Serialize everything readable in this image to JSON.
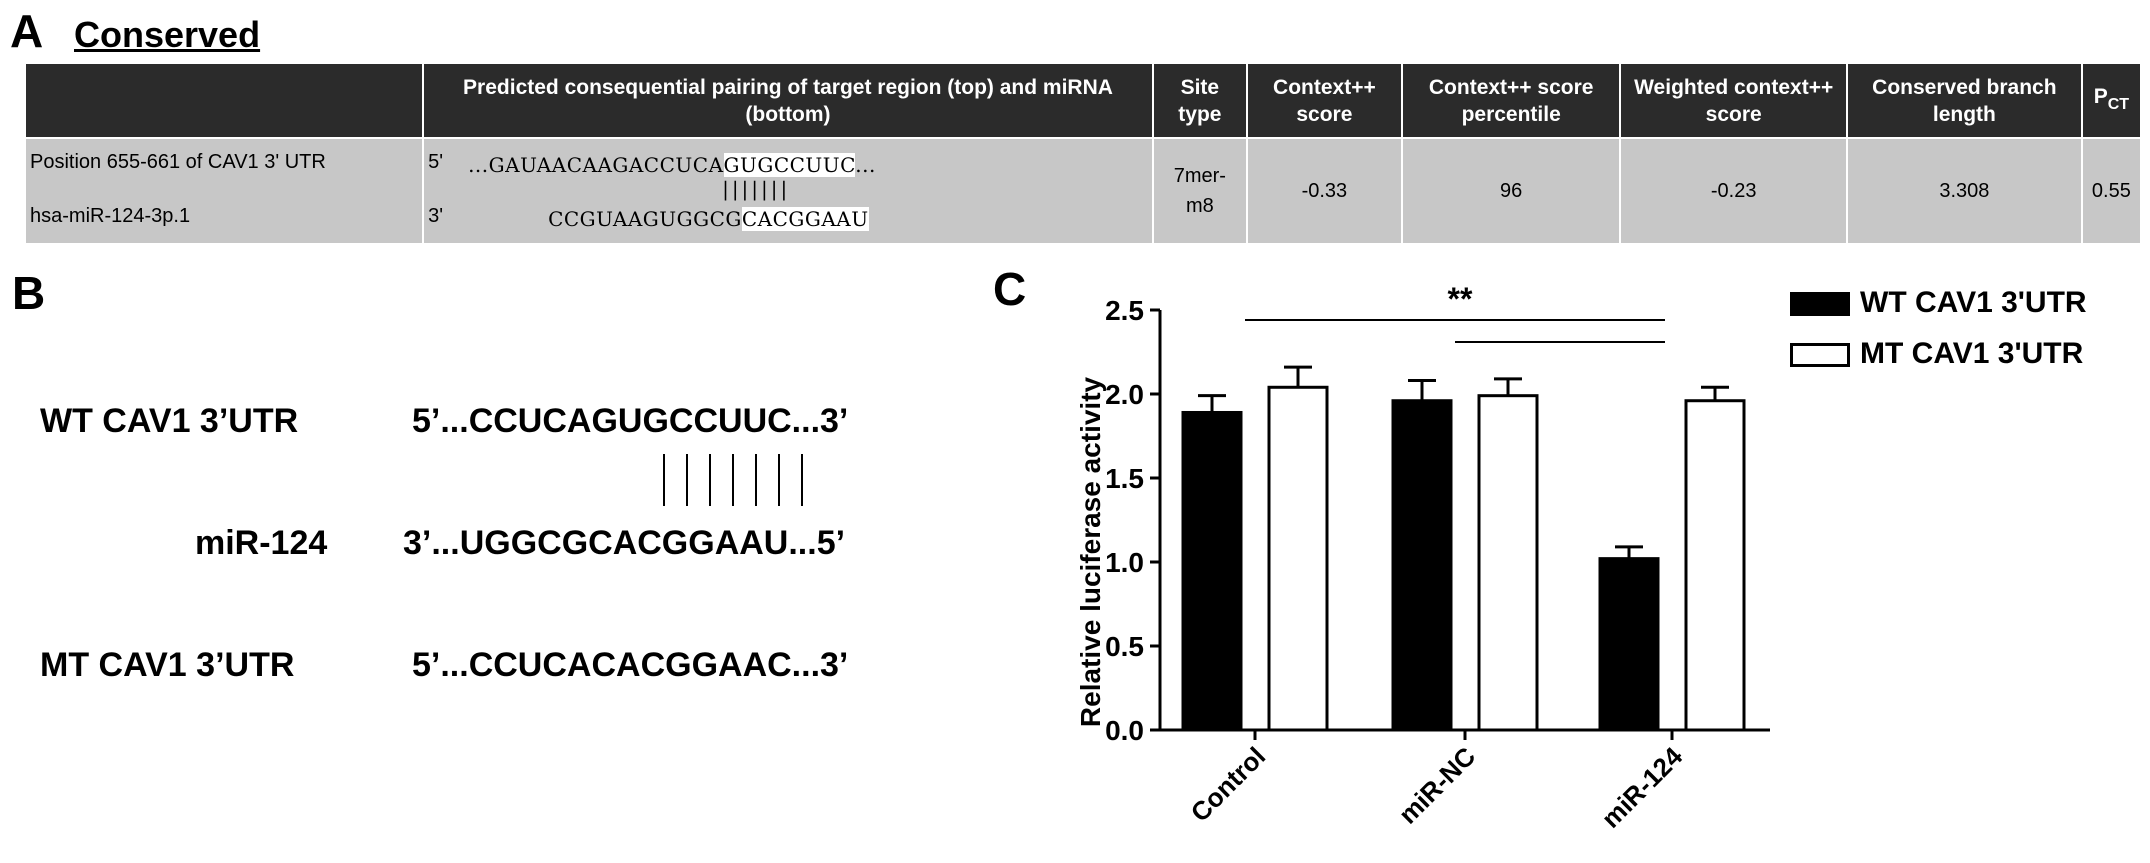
{
  "panel_a": {
    "letter": "A",
    "title": "Conserved",
    "headers": {
      "pairing": "Predicted consequential pairing of target region (top) and miRNA (bottom)",
      "site_type": "Site type",
      "context_score": "Context++ score",
      "context_percentile": "Context++ score percentile",
      "weighted_context": "Weighted context++ score",
      "branch_length": "Conserved branch length",
      "pct_main": "P",
      "pct_sub": "CT"
    },
    "row": {
      "position": "Position 655-661 of CAV1 3' UTR",
      "mirna": "hsa-miR-124-3p.1",
      "five_prime": "5'",
      "three_prime": "3'",
      "target_prefix": "...GAUAACAAGACCUCA",
      "target_site": "GUGCCUUC",
      "target_suffix": "...",
      "pair_bars": "|||||||",
      "mirna_prefix": "CCGUAAGUGGCG",
      "mirna_site": "CACGGAAU",
      "site_type": "7mer-m8",
      "context_score": "-0.33",
      "context_percentile": "96",
      "weighted_context": "-0.23",
      "branch_length": "3.308",
      "pct": "0.55"
    }
  },
  "panel_b": {
    "letter": "B",
    "wt_label": "WT CAV1 3’UTR",
    "wt_seq": "5’...CCUCAGUGCCUUC...3’",
    "mir_label": "miR-124",
    "mir_seq": "3’...UGGCGCACGGAAU...5’",
    "mt_label": "MT CAV1 3’UTR",
    "mt_seq": "5’...CCUCACACGGAAC...3’"
  },
  "panel_c": {
    "letter": "C",
    "significance": "**"
  },
  "chart_data": {
    "type": "bar",
    "title": "",
    "xlabel": "",
    "ylabel": "Relative luciferase activity",
    "ylim": [
      0,
      2.5
    ],
    "yticks": [
      "0.0",
      "0.5",
      "1.0",
      "1.5",
      "2.0",
      "2.5"
    ],
    "categories": [
      "Control",
      "miR-NC",
      "miR-124"
    ],
    "series": [
      {
        "name": "WT CAV1 3'UTR",
        "color": "#000000",
        "values": [
          1.89,
          1.96,
          1.02
        ],
        "errors": [
          0.1,
          0.12,
          0.07
        ]
      },
      {
        "name": "MT CAV1 3'UTR",
        "color": "#ffffff",
        "values": [
          2.04,
          1.99,
          1.96
        ],
        "errors": [
          0.12,
          0.1,
          0.08
        ]
      }
    ],
    "legend_position": "top-right",
    "grid": false
  }
}
